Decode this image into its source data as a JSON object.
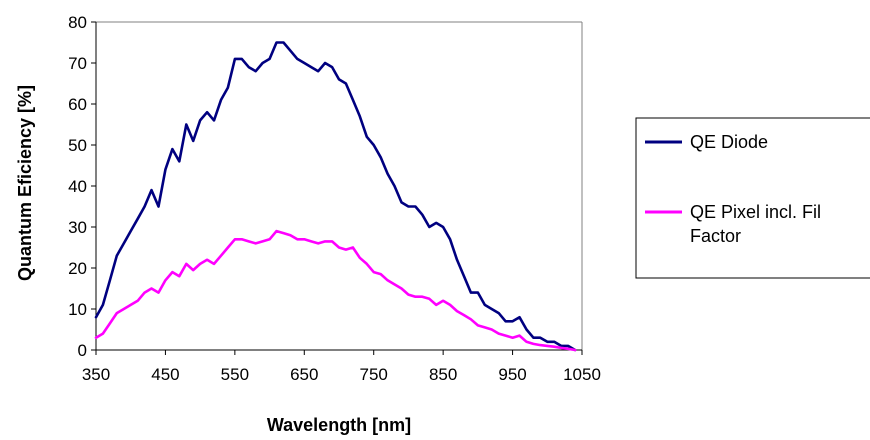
{
  "chart_data": {
    "type": "line",
    "title": "",
    "xlabel": "Wavelength [nm]",
    "ylabel": "Quantum Eficiency [%]",
    "xlim": [
      350,
      1050
    ],
    "ylim": [
      0,
      80
    ],
    "x_ticks": [
      "350",
      "450",
      "550",
      "650",
      "750",
      "850",
      "950",
      "1050"
    ],
    "y_ticks": [
      "0",
      "10",
      "20",
      "30",
      "40",
      "50",
      "60",
      "70",
      "80"
    ],
    "grid": false,
    "legend_position": "right",
    "series": [
      {
        "name": "QE Diode",
        "color": "#000080",
        "x": [
          350,
          360,
          370,
          380,
          390,
          400,
          410,
          420,
          430,
          440,
          450,
          460,
          470,
          480,
          490,
          500,
          510,
          520,
          530,
          540,
          550,
          560,
          570,
          580,
          590,
          600,
          610,
          620,
          630,
          640,
          650,
          660,
          670,
          680,
          690,
          700,
          710,
          720,
          730,
          740,
          750,
          760,
          770,
          780,
          790,
          800,
          810,
          820,
          830,
          840,
          850,
          860,
          870,
          880,
          890,
          900,
          910,
          920,
          930,
          940,
          950,
          960,
          970,
          980,
          990,
          1000,
          1010,
          1020,
          1030,
          1040
        ],
        "values": [
          8,
          11,
          17,
          23,
          26,
          29,
          32,
          35,
          39,
          35,
          44,
          49,
          46,
          55,
          51,
          56,
          58,
          56,
          61,
          64,
          71,
          71,
          69,
          68,
          70,
          71,
          75,
          75,
          73,
          71,
          70,
          69,
          68,
          70,
          69,
          66,
          65,
          61,
          57,
          52,
          50,
          47,
          43,
          40,
          36,
          35,
          35,
          33,
          30,
          31,
          30,
          27,
          22,
          18,
          14,
          14,
          11,
          10,
          9,
          7,
          7,
          8,
          5,
          3,
          3,
          2,
          2,
          1,
          1,
          0
        ]
      },
      {
        "name": "QE Pixel incl. Fil Factor",
        "color": "#ff00ff",
        "x": [
          350,
          360,
          370,
          380,
          390,
          400,
          410,
          420,
          430,
          440,
          450,
          460,
          470,
          480,
          490,
          500,
          510,
          520,
          530,
          540,
          550,
          560,
          570,
          580,
          590,
          600,
          610,
          620,
          630,
          640,
          650,
          660,
          670,
          680,
          690,
          700,
          710,
          720,
          730,
          740,
          750,
          760,
          770,
          780,
          790,
          800,
          810,
          820,
          830,
          840,
          850,
          860,
          870,
          880,
          890,
          900,
          910,
          920,
          930,
          940,
          950,
          960,
          970,
          980,
          990,
          1000,
          1010,
          1020,
          1030,
          1040
        ],
        "values": [
          3,
          4,
          6.5,
          9,
          10,
          11,
          12,
          14,
          15,
          14,
          17,
          19,
          18,
          21,
          19.5,
          21,
          22,
          21,
          23,
          25,
          27,
          27,
          26.5,
          26,
          26.5,
          27,
          29,
          28.5,
          28,
          27,
          27,
          26.5,
          26,
          26.5,
          26.5,
          25,
          24.5,
          25,
          22.5,
          21,
          19,
          18.5,
          17,
          16,
          15,
          13.5,
          13,
          13,
          12.5,
          11,
          12,
          11,
          9.5,
          8.5,
          7.5,
          6,
          5.5,
          5,
          4,
          3.5,
          3,
          3.5,
          2,
          1.5,
          1.2,
          1,
          0.8,
          0.5,
          0.3,
          0
        ]
      }
    ]
  }
}
